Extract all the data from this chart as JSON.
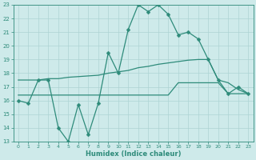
{
  "xlabel": "Humidex (Indice chaleur)",
  "x": [
    0,
    1,
    2,
    3,
    4,
    5,
    6,
    7,
    8,
    9,
    10,
    11,
    12,
    13,
    14,
    15,
    16,
    17,
    18,
    19,
    20,
    21,
    22,
    23
  ],
  "line1": [
    16.0,
    15.8,
    17.5,
    17.5,
    14.0,
    13.0,
    15.7,
    13.5,
    15.8,
    19.5,
    18.0,
    21.2,
    23.0,
    22.5,
    23.0,
    22.3,
    20.8,
    21.0,
    20.5,
    19.0,
    17.5,
    16.5,
    17.0,
    16.5
  ],
  "line2": [
    17.5,
    17.5,
    17.5,
    17.6,
    17.6,
    17.7,
    17.75,
    17.8,
    17.85,
    18.0,
    18.1,
    18.2,
    18.4,
    18.5,
    18.65,
    18.75,
    18.85,
    18.95,
    19.0,
    19.0,
    17.5,
    17.3,
    16.8,
    16.5
  ],
  "line3": [
    16.4,
    16.4,
    16.4,
    16.4,
    16.4,
    16.4,
    16.4,
    16.4,
    16.4,
    16.4,
    16.4,
    16.4,
    16.4,
    16.4,
    16.4,
    16.4,
    17.3,
    17.3,
    17.3,
    17.3,
    17.3,
    16.5,
    16.5,
    16.5
  ],
  "line_color": "#2e8b7a",
  "bg_color": "#ceeaea",
  "grid_color": "#aed4d4",
  "ylim": [
    13,
    23
  ],
  "yticks": [
    13,
    14,
    15,
    16,
    17,
    18,
    19,
    20,
    21,
    22,
    23
  ],
  "xticks": [
    0,
    1,
    2,
    3,
    4,
    5,
    6,
    7,
    8,
    9,
    10,
    11,
    12,
    13,
    14,
    15,
    16,
    17,
    18,
    19,
    20,
    21,
    22,
    23
  ],
  "markersize": 2.5,
  "linewidth": 0.9
}
